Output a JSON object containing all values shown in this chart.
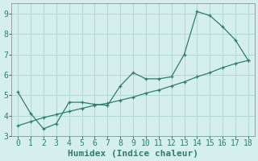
{
  "xlabel": "Humidex (Indice chaleur)",
  "line1_x": [
    0,
    1,
    2,
    3,
    4,
    5,
    6,
    7,
    8,
    9,
    10,
    11,
    12,
    13,
    14,
    15,
    16,
    17,
    18
  ],
  "line1_y": [
    5.15,
    4.1,
    3.35,
    3.6,
    4.65,
    4.65,
    4.55,
    4.5,
    5.45,
    6.1,
    5.8,
    5.8,
    5.9,
    7.0,
    9.1,
    8.9,
    8.35,
    7.7,
    6.7
  ],
  "line2_x": [
    0,
    1,
    2,
    3,
    4,
    5,
    6,
    7,
    8,
    9,
    10,
    11,
    12,
    13,
    14,
    15,
    16,
    17,
    18
  ],
  "line2_y": [
    3.5,
    3.7,
    3.9,
    4.05,
    4.2,
    4.35,
    4.5,
    4.6,
    4.75,
    4.9,
    5.1,
    5.25,
    5.45,
    5.65,
    5.9,
    6.1,
    6.35,
    6.55,
    6.7
  ],
  "line_color": "#2e7d6e",
  "marker_color": "#2e7d6e",
  "bg_color": "#d5eeee",
  "grid_color": "#b0d8d5",
  "xlim": [
    -0.5,
    18.5
  ],
  "ylim": [
    3.0,
    9.5
  ],
  "xticks": [
    0,
    1,
    2,
    3,
    4,
    5,
    6,
    7,
    8,
    9,
    10,
    11,
    12,
    13,
    14,
    15,
    16,
    17,
    18
  ],
  "yticks": [
    3,
    4,
    5,
    6,
    7,
    8,
    9
  ],
  "tick_fontsize": 7,
  "label_fontsize": 8
}
